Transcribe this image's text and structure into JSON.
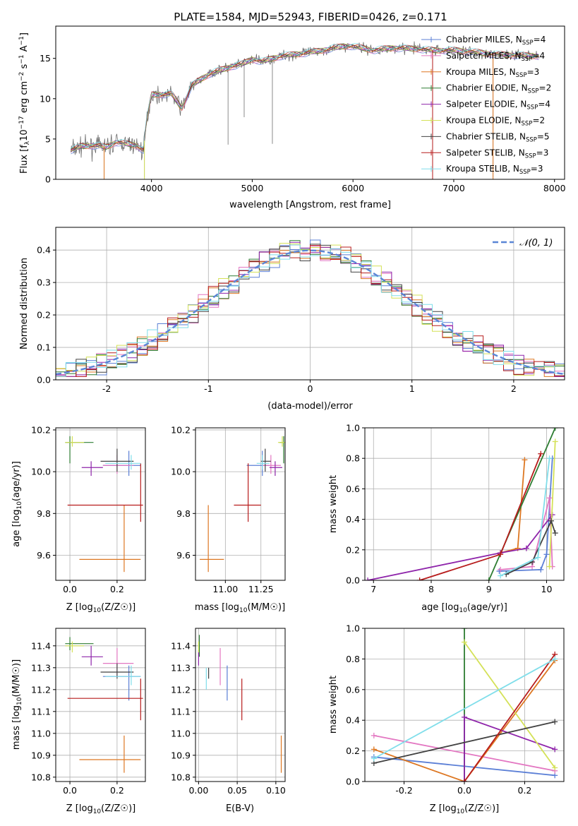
{
  "figure": {
    "title": "PLATE=1584, MJD=52943, FIBERID=0426, z=0.171",
    "colors": {
      "Chabrier MILES": "#5b7fd6",
      "Salpeter MILES": "#e377c2",
      "Kroupa MILES": "#dd7722",
      "Chabrier ELODIE": "#2e7d32",
      "Salpeter ELODIE": "#8e24aa",
      "Kroupa ELODIE": "#d4e157",
      "Chabrier STELIB": "#424242",
      "Salpeter STELIB": "#b71c1c",
      "Kroupa STELIB": "#80deea"
    }
  },
  "chart_data": [
    {
      "id": "spectrum",
      "type": "line",
      "title": "PLATE=1584, MJD=52943, FIBERID=0426, z=0.171",
      "xlabel": "wavelength [Angstrom, rest frame]",
      "ylabel": "Flux [f_λ10^-17 erg cm^-2 s^-1 A^-1]",
      "xlim": [
        3050,
        8100
      ],
      "ylim": [
        0,
        19
      ],
      "xticks": [
        4000,
        5000,
        6000,
        7000,
        8000
      ],
      "yticks": [
        0,
        5,
        10,
        15
      ],
      "grid": false,
      "legend_position": "right",
      "legend": [
        {
          "model": "Chabrier MILES",
          "label": "Chabrier MILES, N",
          "sub": "SSP",
          "suffix": "=4"
        },
        {
          "model": "Salpeter MILES",
          "label": "Salpeter MILES, N",
          "sub": "SSP",
          "suffix": "=4"
        },
        {
          "model": "Kroupa MILES",
          "label": "Kroupa MILES, N",
          "sub": "SSP",
          "suffix": "=3"
        },
        {
          "model": "Chabrier ELODIE",
          "label": "Chabrier ELODIE, N",
          "sub": "SSP",
          "suffix": "=2"
        },
        {
          "model": "Salpeter ELODIE",
          "label": "Salpeter ELODIE, N",
          "sub": "SSP",
          "suffix": "=4"
        },
        {
          "model": "Kroupa ELODIE",
          "label": "Kroupa ELODIE, N",
          "sub": "SSP",
          "suffix": "=2"
        },
        {
          "model": "Chabrier STELIB",
          "label": "Chabrier STELIB, N",
          "sub": "SSP",
          "suffix": "=5"
        },
        {
          "model": "Salpeter STELIB",
          "label": "Salpeter STELIB, N",
          "sub": "SSP",
          "suffix": "=3"
        },
        {
          "model": "Kroupa STELIB",
          "label": "Kroupa STELIB, N",
          "sub": "SSP",
          "suffix": "=3"
        }
      ],
      "continuum": [
        [
          3200,
          3.6
        ],
        [
          3300,
          4.1
        ],
        [
          3450,
          4.2
        ],
        [
          3550,
          4.0
        ],
        [
          3650,
          4.6
        ],
        [
          3750,
          4.4
        ],
        [
          3850,
          4.2
        ],
        [
          3920,
          3.6
        ],
        [
          3950,
          7.2
        ],
        [
          4000,
          10.5
        ],
        [
          4100,
          10.5
        ],
        [
          4200,
          10.6
        ],
        [
          4300,
          8.8
        ],
        [
          4400,
          11.6
        ],
        [
          4500,
          12.5
        ],
        [
          4600,
          13.2
        ],
        [
          4700,
          13.6
        ],
        [
          4800,
          14.0
        ],
        [
          4900,
          14.3
        ],
        [
          5000,
          14.9
        ],
        [
          5100,
          14.6
        ],
        [
          5200,
          15.0
        ],
        [
          5300,
          15.3
        ],
        [
          5500,
          15.6
        ],
        [
          5700,
          16.0
        ],
        [
          5900,
          16.5
        ],
        [
          6000,
          16.5
        ],
        [
          6200,
          16.0
        ],
        [
          6400,
          16.3
        ],
        [
          6600,
          16.2
        ],
        [
          6800,
          16.0
        ],
        [
          7000,
          16.0
        ],
        [
          7200,
          15.8
        ],
        [
          7400,
          15.5
        ],
        [
          7600,
          15.4
        ],
        [
          7800,
          15.3
        ]
      ],
      "spikes": [
        [
          4760,
          4.3
        ],
        [
          5200,
          4.4
        ],
        [
          4920,
          7.7
        ],
        [
          3530,
          0.2
        ],
        [
          3930,
          0.2
        ],
        [
          6790,
          0.2
        ],
        [
          7390,
          0.2
        ]
      ]
    },
    {
      "id": "residuals",
      "type": "line",
      "xlabel": "(data-model)/error",
      "ylabel": "Normed distribution",
      "xlim": [
        -2.5,
        2.5
      ],
      "ylim": [
        0,
        0.47
      ],
      "xticks": [
        -2,
        -1,
        0,
        1,
        2
      ],
      "yticks": [
        0.0,
        0.1,
        0.2,
        0.3,
        0.4
      ],
      "grid": true,
      "legend_position": "top-right",
      "reference": {
        "label": "𝒩(0, 1)",
        "mean": 0,
        "sigma": 1
      }
    },
    {
      "id": "age-vs-Z",
      "type": "scatter",
      "xlabel_main": "Z [log",
      "xlabel_sub": "10",
      "xlabel_rest": "(Z/Z☉)]",
      "ylabel_main": "age  [log",
      "ylabel_sub": "10",
      "ylabel_rest": "(age/yr)]",
      "xlim": [
        -0.06,
        0.32
      ],
      "ylim": [
        9.48,
        10.21
      ],
      "xticks": [
        0.0,
        0.2
      ],
      "yticks": [
        9.6,
        9.8,
        10.0,
        10.2
      ],
      "grid": true
    },
    {
      "id": "age-vs-mass",
      "type": "scatter",
      "xlabel_main": "mass [log",
      "xlabel_sub": "10",
      "xlabel_rest": "(M/M☉)]",
      "xlim": [
        10.79,
        11.42
      ],
      "ylim": [
        9.48,
        10.21
      ],
      "xticks": [
        11.0,
        11.25
      ],
      "yticks": [
        9.6,
        9.8,
        10.0,
        10.2
      ],
      "grid": true
    },
    {
      "id": "weight-vs-age",
      "type": "line",
      "xlabel_main": "age  [log",
      "xlabel_sub": "10",
      "xlabel_rest": "(age/yr)]",
      "ylabel": "mass weight",
      "xlim": [
        6.85,
        10.3
      ],
      "ylim": [
        0,
        1.0
      ],
      "xticks": [
        7,
        8,
        9,
        10
      ],
      "yticks": [
        0.0,
        0.2,
        0.4,
        0.6,
        0.8,
        1.0
      ],
      "grid": true
    },
    {
      "id": "mass-vs-Z",
      "type": "scatter",
      "xlabel_main": "Z [log",
      "xlabel_sub": "10",
      "xlabel_rest": "(Z/Z☉)]",
      "ylabel_main": "mass [log",
      "ylabel_sub": "10",
      "ylabel_rest": "(M/M☉)]",
      "xlim": [
        -0.06,
        0.32
      ],
      "ylim": [
        10.78,
        11.48
      ],
      "xticks": [
        0.0,
        0.2
      ],
      "yticks": [
        10.8,
        10.9,
        11.0,
        11.1,
        11.2,
        11.3,
        11.4
      ],
      "grid": true
    },
    {
      "id": "mass-vs-EBV",
      "type": "scatter",
      "xlabel": "E(B-V)",
      "xlim": [
        -0.004,
        0.112
      ],
      "ylim": [
        10.78,
        11.48
      ],
      "xticks": [
        0.0,
        0.05,
        0.1
      ],
      "yticks": [
        10.8,
        10.9,
        11.0,
        11.1,
        11.2,
        11.3,
        11.4
      ],
      "grid": true
    },
    {
      "id": "weight-vs-Z",
      "type": "line",
      "xlabel_main": "Z [log",
      "xlabel_sub": "10",
      "xlabel_rest": "(Z/Z☉)]",
      "ylabel": "mass weight",
      "xlim": [
        -0.33,
        0.33
      ],
      "ylim": [
        0,
        1.0
      ],
      "xticks": [
        -0.2,
        0.0,
        0.2
      ],
      "yticks": [
        0.0,
        0.2,
        0.4,
        0.6,
        0.8,
        1.0
      ],
      "grid": true
    }
  ],
  "fits": [
    {
      "model": "Chabrier MILES",
      "Z": 0.25,
      "Z_lo": 0.14,
      "Z_hi": 0.3,
      "age": 10.03,
      "age_lo": 9.98,
      "age_hi": 10.1,
      "mass": 11.26,
      "mass_lo": 11.15,
      "mass_hi": 11.31,
      "ebv": 0.037,
      "ebv_lo": 11.15,
      "ebv_hi": 11.31,
      "weight_age": [
        [
          9.18,
          0.06
        ],
        [
          9.9,
          0.07
        ],
        [
          10.0,
          0.17
        ],
        [
          10.1,
          0.8
        ]
      ],
      "weight_Z": [
        [
          -0.3,
          0.16
        ],
        [
          0.3,
          0.04
        ]
      ]
    },
    {
      "model": "Salpeter MILES",
      "Z": 0.2,
      "Z_lo": 0.14,
      "Z_hi": 0.27,
      "age": 10.03,
      "age_lo": 9.99,
      "age_hi": 10.08,
      "mass": 11.32,
      "mass_lo": 11.26,
      "mass_hi": 11.39,
      "ebv": 0.028,
      "ebv_lo": 11.22,
      "ebv_hi": 11.39,
      "weight_age": [
        [
          9.2,
          0.07
        ],
        [
          9.75,
          0.09
        ],
        [
          10.05,
          0.54
        ],
        [
          10.1,
          0.09
        ]
      ],
      "weight_Z": [
        [
          -0.3,
          0.3
        ],
        [
          0.3,
          0.07
        ]
      ]
    },
    {
      "model": "Kroupa MILES",
      "Z": 0.23,
      "Z_lo": 0.04,
      "Z_hi": 0.3,
      "age": 9.58,
      "age_lo": 9.52,
      "age_hi": 9.84,
      "mass": 10.88,
      "mass_lo": 10.82,
      "mass_hi": 10.99,
      "ebv": 0.107,
      "ebv_lo": 10.82,
      "ebv_hi": 10.99,
      "weight_age": [
        [
          9.2,
          0.18
        ],
        [
          9.5,
          0.21
        ],
        [
          9.62,
          0.79
        ]
      ],
      "weight_Z": [
        [
          -0.3,
          0.21
        ],
        [
          0.0,
          0.0
        ],
        [
          0.3,
          0.79
        ]
      ]
    },
    {
      "model": "Chabrier ELODIE",
      "Z": 0.0,
      "Z_lo": -0.02,
      "Z_hi": 0.1,
      "age": 10.14,
      "age_lo": 10.04,
      "age_hi": 10.17,
      "mass": 11.41,
      "mass_lo": 11.38,
      "mass_hi": 11.44,
      "ebv": 0.001,
      "ebv_lo": 11.35,
      "ebv_hi": 11.45,
      "weight_age": [
        [
          9.0,
          0.0
        ],
        [
          10.15,
          1.0
        ]
      ],
      "weight_Z": [
        [
          0.0,
          0.0
        ],
        [
          0.0,
          1.0
        ]
      ]
    },
    {
      "model": "Salpeter ELODIE",
      "Z": 0.09,
      "Z_lo": 0.05,
      "Z_hi": 0.14,
      "age": 10.02,
      "age_lo": 9.98,
      "age_hi": 10.05,
      "mass": 11.35,
      "mass_lo": 11.31,
      "mass_hi": 11.4,
      "ebv": 0.0,
      "ebv_lo": 11.31,
      "ebv_hi": 11.38,
      "weight_age": [
        [
          6.9,
          0.0
        ],
        [
          9.2,
          0.18
        ],
        [
          9.65,
          0.21
        ],
        [
          10.1,
          0.43
        ]
      ],
      "weight_Z": [
        [
          0.0,
          0.0
        ],
        [
          0.0,
          0.42
        ],
        [
          0.3,
          0.21
        ]
      ]
    },
    {
      "model": "Kroupa ELODIE",
      "Z": 0.01,
      "Z_lo": -0.02,
      "Z_hi": 0.06,
      "age": 10.14,
      "age_lo": 10.12,
      "age_hi": 10.17,
      "mass": 11.4,
      "mass_lo": 11.37,
      "mass_hi": 11.42,
      "ebv": 0.0,
      "ebv_lo": 11.37,
      "ebv_hi": 11.42,
      "weight_age": [
        [
          10.05,
          0.09
        ],
        [
          10.15,
          0.91
        ]
      ],
      "weight_Z": [
        [
          0.0,
          0.91
        ],
        [
          0.3,
          0.09
        ]
      ]
    },
    {
      "model": "Chabrier STELIB",
      "Z": 0.2,
      "Z_lo": 0.13,
      "Z_hi": 0.27,
      "age": 10.05,
      "age_lo": 10.0,
      "age_hi": 10.11,
      "mass": 11.28,
      "mass_lo": 11.25,
      "mass_hi": 11.32,
      "ebv": 0.013,
      "ebv_lo": 11.25,
      "ebv_hi": 11.3,
      "weight_age": [
        [
          9.3,
          0.04
        ],
        [
          9.75,
          0.12
        ],
        [
          10.08,
          0.39
        ],
        [
          10.15,
          0.31
        ]
      ],
      "weight_Z": [
        [
          -0.3,
          0.12
        ],
        [
          0.3,
          0.39
        ]
      ]
    },
    {
      "model": "Salpeter STELIB",
      "Z": 0.3,
      "Z_lo": -0.01,
      "Z_hi": 0.31,
      "age": 9.84,
      "age_lo": 9.76,
      "age_hi": 10.04,
      "mass": 11.16,
      "mass_lo": 11.06,
      "mass_hi": 11.25,
      "ebv": 0.056,
      "ebv_lo": 11.06,
      "ebv_hi": 11.25,
      "weight_age": [
        [
          7.8,
          0.0
        ],
        [
          9.2,
          0.17
        ],
        [
          9.9,
          0.83
        ]
      ],
      "weight_Z": [
        [
          0.0,
          0.0
        ],
        [
          0.3,
          0.83
        ]
      ]
    },
    {
      "model": "Kroupa STELIB",
      "Z": 0.26,
      "Z_lo": 0.15,
      "Z_hi": 0.3,
      "age": 10.04,
      "age_lo": 10.01,
      "age_hi": 10.08,
      "mass": 11.26,
      "mass_lo": 11.22,
      "mass_hi": 11.31,
      "ebv": 0.01,
      "ebv_lo": 11.2,
      "ebv_hi": 11.3,
      "weight_age": [
        [
          9.2,
          0.03
        ],
        [
          9.85,
          0.15
        ],
        [
          10.05,
          0.8
        ]
      ],
      "weight_Z": [
        [
          -0.3,
          0.15
        ],
        [
          0.3,
          0.8
        ]
      ]
    }
  ]
}
